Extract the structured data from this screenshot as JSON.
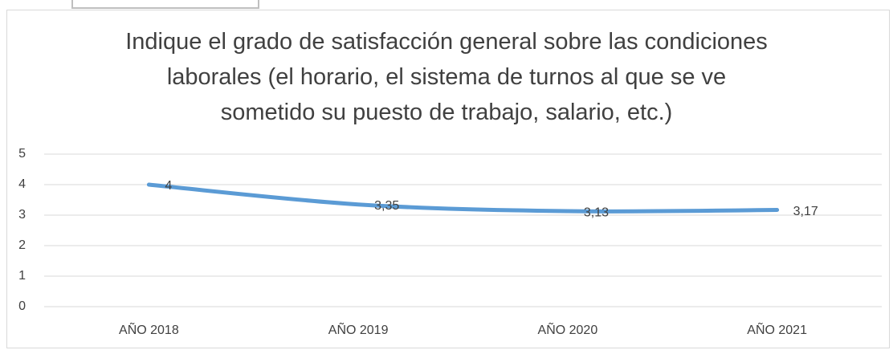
{
  "chart_data": {
    "type": "line",
    "title": "Indique el grado de satisfacción general sobre las condiciones laborales (el horario, el sistema de turnos al que se ve sometido su puesto de trabajo, salario, etc.)",
    "categories": [
      "AÑO 2018",
      "AÑO 2019",
      "AÑO 2020",
      "AÑO 2021"
    ],
    "values": [
      4,
      3.35,
      3.13,
      3.17
    ],
    "value_labels": [
      "4",
      "3,35",
      "3,13",
      "3,17"
    ],
    "color": "#5b9bd5",
    "ylim": [
      0,
      5
    ],
    "yticks": [
      0,
      1,
      2,
      3,
      4,
      5
    ],
    "grid": true
  }
}
